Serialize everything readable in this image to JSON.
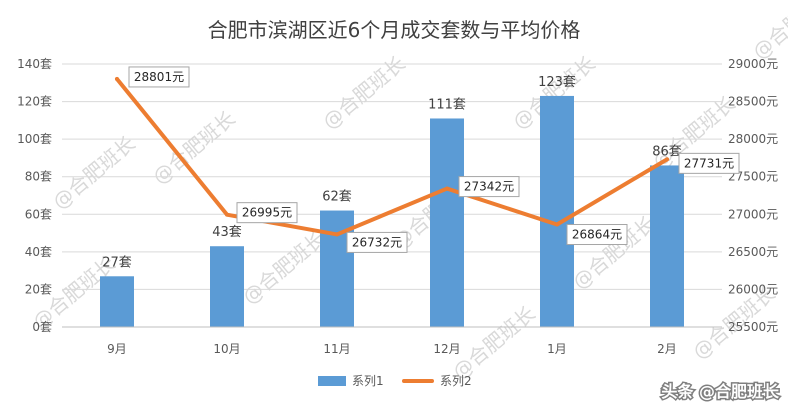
{
  "chart_data": {
    "type": "bar+line",
    "title": "合肥市滨湖区近6个月成交套数与平均价格",
    "categories": [
      "9月",
      "10月",
      "11月",
      "12月",
      "1月",
      "2月"
    ],
    "series": [
      {
        "name": "系列1",
        "type": "bar",
        "axis": "left",
        "values": [
          27,
          43,
          62,
          111,
          123,
          86
        ],
        "labels": [
          "27套",
          "43套",
          "62套",
          "111套",
          "123套",
          "86套"
        ],
        "color": "#5b9bd5"
      },
      {
        "name": "系列2",
        "type": "line",
        "axis": "right",
        "values": [
          28801,
          26995,
          26732,
          27342,
          26864,
          27731
        ],
        "labels": [
          "28801元",
          "26995元",
          "26732元",
          "27342元",
          "26864元",
          "27731元"
        ],
        "color": "#ed7d31"
      }
    ],
    "y_left": {
      "ylim": [
        0,
        140
      ],
      "ticks": [
        0,
        20,
        40,
        60,
        80,
        100,
        120,
        140
      ],
      "tick_labels": [
        "0套",
        "20套",
        "40套",
        "60套",
        "80套",
        "100套",
        "120套",
        "140套"
      ]
    },
    "y_right": {
      "ylim": [
        25500,
        29000
      ],
      "ticks": [
        25500,
        26000,
        26500,
        27000,
        27500,
        28000,
        28500,
        29000
      ],
      "tick_labels": [
        "25500元",
        "26000元",
        "26500元",
        "27000元",
        "27500元",
        "28000元",
        "28500元",
        "29000元"
      ]
    },
    "grid": true,
    "legend": "bottom"
  },
  "watermark": {
    "text": "@合肥班长",
    "corner_text": "头条 @合肥班长"
  },
  "colors": {
    "bar": "#5b9bd5",
    "line": "#ed7d31",
    "grid": "#d9d9d9"
  }
}
